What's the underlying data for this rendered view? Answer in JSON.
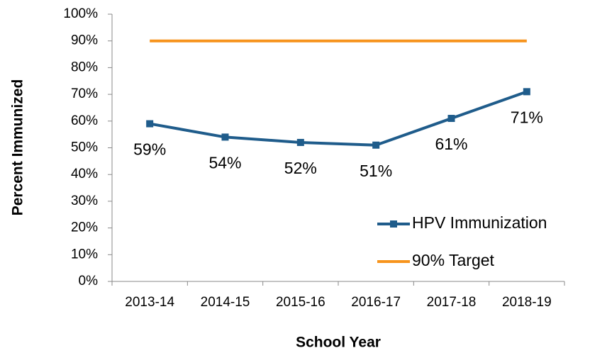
{
  "chart_data": {
    "type": "line",
    "categories": [
      "2013-14",
      "2014-15",
      "2015-16",
      "2016-17",
      "2017-18",
      "2018-19"
    ],
    "series": [
      {
        "name": "HPV Immunization",
        "color": "#1f5c8b",
        "values": [
          59,
          54,
          52,
          51,
          61,
          71
        ],
        "value_labels": [
          "59%",
          "54%",
          "52%",
          "51%",
          "61%",
          "71%"
        ],
        "marker": "square"
      },
      {
        "name": "90% Target",
        "color": "#f7941d",
        "values": [
          90,
          90,
          90,
          90,
          90,
          90
        ]
      }
    ],
    "ylim": [
      0,
      100
    ],
    "yticks": [
      {
        "value": 0,
        "label": "0%"
      },
      {
        "value": 10,
        "label": "10%"
      },
      {
        "value": 20,
        "label": "20%"
      },
      {
        "value": 30,
        "label": "30%"
      },
      {
        "value": 40,
        "label": "40%"
      },
      {
        "value": 50,
        "label": "50%"
      },
      {
        "value": 60,
        "label": "60%"
      },
      {
        "value": 70,
        "label": "70%"
      },
      {
        "value": 80,
        "label": "80%"
      },
      {
        "value": 90,
        "label": "90%"
      },
      {
        "value": 100,
        "label": "100%"
      }
    ],
    "xlabel": "School Year",
    "ylabel": "Percent Immunized",
    "grid": false,
    "legend": "lower right"
  }
}
